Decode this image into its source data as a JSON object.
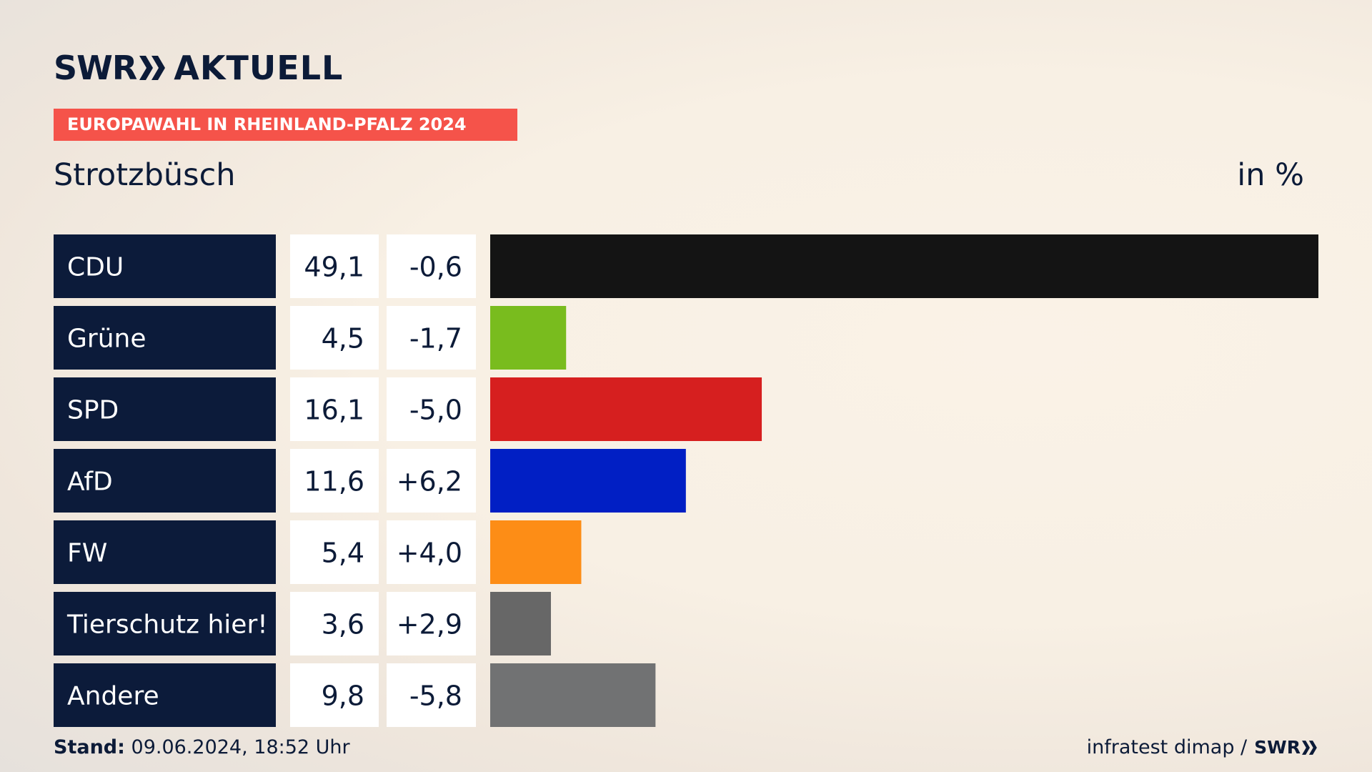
{
  "header": {
    "brand_swr": "SWR",
    "brand_aktuell": "AKTUELL",
    "election_tag": "EUROPAWAHL IN RHEINLAND-PFALZ 2024",
    "place": "Strotzbüsch",
    "unit": "in %"
  },
  "chart_data": {
    "type": "bar",
    "title": "Strotzbüsch",
    "unit": "in %",
    "categories": [
      "CDU",
      "Grüne",
      "SPD",
      "AfD",
      "FW",
      "Tierschutz hier!",
      "Andere"
    ],
    "series": [
      {
        "values": [
          49.1,
          4.5,
          16.1,
          11.6,
          5.4,
          3.6,
          9.8
        ],
        "labels": [
          "49,1",
          "4,5",
          "16,1",
          "11,6",
          "5,4",
          "3,6",
          "9,8"
        ]
      }
    ],
    "changes": [
      -0.6,
      -1.7,
      -5.0,
      6.2,
      4.0,
      2.9,
      -5.8
    ],
    "change_labels": [
      "-0,6",
      "-1,7",
      "-5,0",
      "+6,2",
      "+4,0",
      "+2,9",
      "-5,8"
    ],
    "colors": [
      "#141414",
      "#79bc1e",
      "#d61f1f",
      "#011fc4",
      "#fd8d16",
      "#676767",
      "#717273"
    ],
    "xlim": [
      0,
      49.1
    ],
    "grid": false,
    "legend": "none"
  },
  "footer": {
    "stand_label": "Stand:",
    "stand_value": "09.06.2024, 18:52 Uhr",
    "source": "infratest dimap /",
    "source_logo": "SWR"
  }
}
